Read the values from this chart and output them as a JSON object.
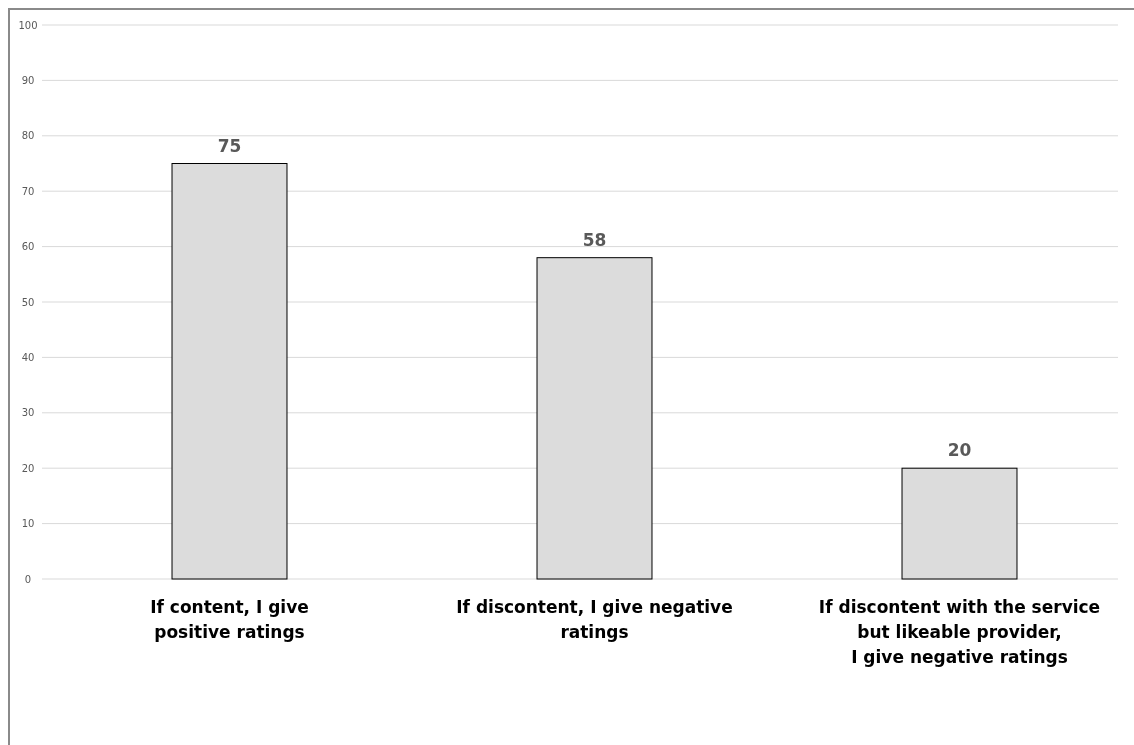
{
  "chart_data": {
    "type": "bar",
    "categories": [
      "If content, I give\npositive ratings",
      "If discontent, I give negative\nratings",
      "If discontent with the service\nbut likeable provider,\nI give negative ratings"
    ],
    "values": [
      75,
      58,
      20
    ],
    "color": "#dcdcdc",
    "ylim": [
      0,
      100
    ],
    "yticks": [
      0,
      10,
      20,
      30,
      40,
      50,
      60,
      70,
      80,
      90,
      100
    ],
    "grid": "y",
    "data_labels": true
  }
}
